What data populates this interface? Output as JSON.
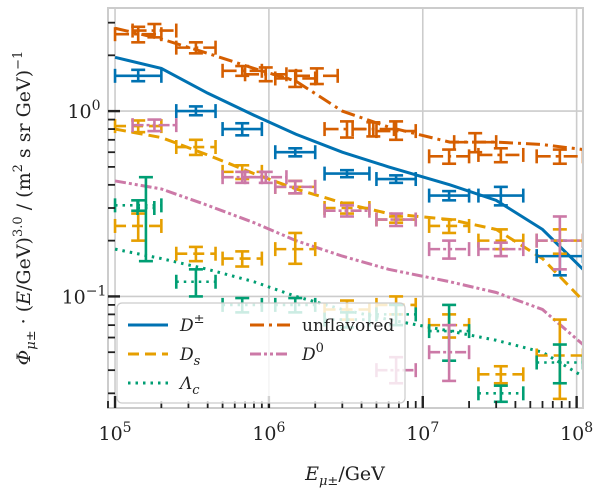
{
  "chart_data": {
    "type": "line",
    "xlabel": "E_{μ±}/GeV",
    "ylabel": "Φ_{μ±} · (E/GeV)^{3.0} / (m² s sr GeV)^{-1}",
    "x_scale": "log",
    "y_scale": "log",
    "xlim": [
      90000,
      110000000
    ],
    "ylim": [
      0.025,
      3.6
    ],
    "grid": true,
    "legend_position": "lower-left",
    "x_ticks": [
      {
        "v": 100000,
        "mant": "10",
        "exp": "5"
      },
      {
        "v": 1000000,
        "mant": "10",
        "exp": "6"
      },
      {
        "v": 10000000,
        "mant": "10",
        "exp": "7"
      },
      {
        "v": 100000000,
        "mant": "10",
        "exp": "8"
      }
    ],
    "y_ticks": [
      {
        "v": 0.1,
        "mant": "10",
        "exp": "−1"
      },
      {
        "v": 1.0,
        "mant": "10",
        "exp": "0"
      }
    ],
    "series": [
      {
        "name": "D±",
        "legend_base": "D",
        "legend_sup": "±",
        "legend_sub": "",
        "color": "#0072b2",
        "dash": "solid",
        "x": [
          100000,
          200000,
          400000,
          800000,
          1500000,
          3000000,
          6000000,
          15000000,
          30000000,
          60000000,
          110000000
        ],
        "y": [
          1.95,
          1.7,
          1.25,
          0.95,
          0.75,
          0.6,
          0.5,
          0.4,
          0.33,
          0.23,
          0.14
        ],
        "points": [
          {
            "x": [
              100000,
              200000
            ],
            "y": 1.55,
            "ylo": 1.45,
            "yhi": 1.67
          },
          {
            "x": [
              250000,
              450000
            ],
            "y": 1.0,
            "ylo": 0.95,
            "yhi": 1.06
          },
          {
            "x": [
              500000,
              900000
            ],
            "y": 0.8,
            "ylo": 0.74,
            "yhi": 0.86
          },
          {
            "x": [
              1100000,
              2000000
            ],
            "y": 0.6,
            "ylo": 0.57,
            "yhi": 0.63
          },
          {
            "x": [
              2300000,
              4500000
            ],
            "y": 0.46,
            "ylo": 0.44,
            "yhi": 0.48
          },
          {
            "x": [
              5000000,
              9000000
            ],
            "y": 0.43,
            "ylo": 0.41,
            "yhi": 0.45
          },
          {
            "x": [
              11000000,
              20000000
            ],
            "y": 0.35,
            "ylo": 0.33,
            "yhi": 0.37
          },
          {
            "x": [
              23000000,
              45000000
            ],
            "y": 0.35,
            "ylo": 0.31,
            "yhi": 0.39
          },
          {
            "x": [
              55000000,
              110000000
            ],
            "y": 0.165,
            "ylo": 0.13,
            "yhi": 0.2
          }
        ]
      },
      {
        "name": "Ds",
        "legend_base": "D",
        "legend_sup": "",
        "legend_sub": "s",
        "color": "#e69f00",
        "dash": "11,6",
        "x": [
          100000,
          200000,
          400000,
          800000,
          1500000,
          3000000,
          6000000,
          15000000,
          30000000,
          60000000,
          110000000
        ],
        "y": [
          0.8,
          0.72,
          0.58,
          0.46,
          0.38,
          0.32,
          0.28,
          0.26,
          0.23,
          0.16,
          0.095
        ],
        "points": [
          {
            "x": [
              100000,
              200000
            ],
            "y": 0.83,
            "ylo": 0.77,
            "yhi": 0.89
          },
          {
            "x": [
              250000,
              450000
            ],
            "y": 0.64,
            "ylo": 0.58,
            "yhi": 0.7
          },
          {
            "x": [
              500000,
              900000
            ],
            "y": 0.47,
            "ylo": 0.43,
            "yhi": 0.51
          },
          {
            "x": [
              1100000,
              2000000
            ],
            "y": 0.39,
            "ylo": 0.36,
            "yhi": 0.42
          },
          {
            "x": [
              2300000,
              4500000
            ],
            "y": 0.3,
            "ylo": 0.28,
            "yhi": 0.32
          },
          {
            "x": [
              5000000,
              9000000
            ],
            "y": 0.26,
            "ylo": 0.25,
            "yhi": 0.27
          },
          {
            "x": [
              11000000,
              20000000
            ],
            "y": 0.24,
            "ylo": 0.22,
            "yhi": 0.26
          },
          {
            "x": [
              23000000,
              45000000
            ],
            "y": 0.2,
            "ylo": 0.18,
            "yhi": 0.23
          },
          {
            "x": [
              55000000,
              110000000
            ],
            "y": 0.2,
            "ylo": 0.17,
            "yhi": 0.23
          },
          {
            "x": [
              100000,
              200000
            ],
            "y": 0.24,
            "ylo": 0.2,
            "yhi": 0.28
          },
          {
            "x": [
              250000,
              450000
            ],
            "y": 0.17,
            "ylo": 0.155,
            "yhi": 0.185
          },
          {
            "x": [
              500000,
              900000
            ],
            "y": 0.16,
            "ylo": 0.145,
            "yhi": 0.175
          },
          {
            "x": [
              1100000,
              2000000
            ],
            "y": 0.18,
            "ylo": 0.15,
            "yhi": 0.22
          },
          {
            "x": [
              2300000,
              4500000
            ],
            "y": 0.085,
            "ylo": 0.075,
            "yhi": 0.095
          },
          {
            "x": [
              5000000,
              9000000
            ],
            "y": 0.09,
            "ylo": 0.08,
            "yhi": 0.1
          },
          {
            "x": [
              11000000,
              20000000
            ],
            "y": 0.07,
            "ylo": 0.06,
            "yhi": 0.08
          },
          {
            "x": [
              23000000,
              45000000
            ],
            "y": 0.038,
            "ylo": 0.034,
            "yhi": 0.042
          },
          {
            "x": [
              55000000,
              110000000
            ],
            "y": 0.048,
            "ylo": 0.028,
            "yhi": 0.075
          }
        ]
      },
      {
        "name": "Λc",
        "legend_base": "Λ",
        "legend_sup": "",
        "legend_sub": "c",
        "color": "#009e73",
        "dash": "2.5,5",
        "x": [
          100000,
          200000,
          400000,
          800000,
          1500000,
          3000000,
          6000000,
          15000000,
          30000000,
          60000000,
          110000000
        ],
        "y": [
          0.18,
          0.16,
          0.14,
          0.12,
          0.1,
          0.085,
          0.075,
          0.065,
          0.058,
          0.05,
          0.037
        ],
        "points": [
          {
            "x": [
              100000,
              200000
            ],
            "y": 0.31,
            "ylo": 0.29,
            "yhi": 0.33
          },
          {
            "x": [
              140000,
              180000
            ],
            "y": 0.3,
            "ylo": 0.155,
            "yhi": 0.44
          },
          {
            "x": [
              250000,
              450000
            ],
            "y": 0.12,
            "ylo": 0.1,
            "yhi": 0.14
          },
          {
            "x": [
              500000,
              900000
            ],
            "y": 0.09,
            "ylo": 0.082,
            "yhi": 0.098
          },
          {
            "x": [
              1100000,
              2000000
            ],
            "y": 0.09,
            "ylo": 0.082,
            "yhi": 0.098
          },
          {
            "x": [
              2300000,
              4500000
            ],
            "y": 0.075,
            "ylo": 0.068,
            "yhi": 0.082
          },
          {
            "x": [
              5000000,
              9000000
            ],
            "y": 0.08,
            "ylo": 0.07,
            "yhi": 0.09
          },
          {
            "x": [
              11000000,
              20000000
            ],
            "y": 0.065,
            "ylo": 0.045,
            "yhi": 0.09
          },
          {
            "x": [
              23000000,
              45000000
            ],
            "y": 0.03,
            "ylo": 0.027,
            "yhi": 0.033
          },
          {
            "x": [
              55000000,
              110000000
            ],
            "y": 0.044,
            "ylo": 0.034,
            "yhi": 0.055
          }
        ]
      },
      {
        "name": "unflavored",
        "legend_base": "unflavored",
        "legend_sup": "",
        "legend_sub": "",
        "color": "#d55e00",
        "dash": "14,5,3,5",
        "x": [
          100000,
          200000,
          400000,
          800000,
          1500000,
          3000000,
          6000000,
          15000000,
          30000000,
          60000000,
          110000000
        ],
        "y": [
          2.8,
          2.45,
          2.05,
          1.7,
          1.45,
          1.0,
          0.82,
          0.68,
          0.68,
          0.66,
          0.62
        ],
        "points": [
          {
            "x": [
              100000,
              200000
            ],
            "y": 2.6,
            "ylo": 2.35,
            "yhi": 2.85
          },
          {
            "x": [
              130000,
              250000
            ],
            "y": 2.72,
            "ylo": 2.5,
            "yhi": 2.95
          },
          {
            "x": [
              250000,
              450000
            ],
            "y": 2.2,
            "ylo": 2.05,
            "yhi": 2.35
          },
          {
            "x": [
              500000,
              900000
            ],
            "y": 1.65,
            "ylo": 1.55,
            "yhi": 1.75
          },
          {
            "x": [
              700000,
              1300000
            ],
            "y": 1.58,
            "ylo": 1.45,
            "yhi": 1.72
          },
          {
            "x": [
              1100000,
              2000000
            ],
            "y": 1.5,
            "ylo": 1.35,
            "yhi": 1.65
          },
          {
            "x": [
              1500000,
              2800000
            ],
            "y": 1.55,
            "ylo": 1.4,
            "yhi": 1.7
          },
          {
            "x": [
              2300000,
              4500000
            ],
            "y": 0.8,
            "ylo": 0.72,
            "yhi": 0.88
          },
          {
            "x": [
              3500000,
              6500000
            ],
            "y": 0.8,
            "ylo": 0.73,
            "yhi": 0.87
          },
          {
            "x": [
              5000000,
              9000000
            ],
            "y": 0.78,
            "ylo": 0.7,
            "yhi": 0.88
          },
          {
            "x": [
              11000000,
              20000000
            ],
            "y": 0.57,
            "ylo": 0.52,
            "yhi": 0.62
          },
          {
            "x": [
              16000000,
              30000000
            ],
            "y": 0.68,
            "ylo": 0.6,
            "yhi": 0.76
          },
          {
            "x": [
              23000000,
              45000000
            ],
            "y": 0.58,
            "ylo": 0.53,
            "yhi": 0.63
          },
          {
            "x": [
              55000000,
              110000000
            ],
            "y": 0.57,
            "ylo": 0.52,
            "yhi": 0.62
          }
        ]
      },
      {
        "name": "D0",
        "legend_base": "D",
        "legend_sup": "0",
        "legend_sub": "",
        "color": "#cc79a7",
        "dash": "11,3,3,3,3,3",
        "x": [
          100000,
          200000,
          400000,
          800000,
          1500000,
          3000000,
          6000000,
          15000000,
          30000000,
          60000000,
          110000000
        ],
        "y": [
          0.42,
          0.38,
          0.31,
          0.25,
          0.2,
          0.165,
          0.14,
          0.12,
          0.105,
          0.085,
          0.055
        ],
        "points": [
          {
            "x": [
              130000,
              250000
            ],
            "y": 0.84,
            "ylo": 0.78,
            "yhi": 0.9
          },
          {
            "x": [
              500000,
              900000
            ],
            "y": 0.44,
            "ylo": 0.41,
            "yhi": 0.47
          },
          {
            "x": [
              700000,
              1300000
            ],
            "y": 0.44,
            "ylo": 0.41,
            "yhi": 0.47
          },
          {
            "x": [
              1100000,
              2000000
            ],
            "y": 0.39,
            "ylo": 0.36,
            "yhi": 0.42
          },
          {
            "x": [
              2300000,
              4500000
            ],
            "y": 0.29,
            "ylo": 0.27,
            "yhi": 0.31
          },
          {
            "x": [
              5000000,
              9000000
            ],
            "y": 0.26,
            "ylo": 0.24,
            "yhi": 0.28
          },
          {
            "x": [
              11000000,
              20000000
            ],
            "y": 0.18,
            "ylo": 0.16,
            "yhi": 0.2
          },
          {
            "x": [
              23000000,
              45000000
            ],
            "y": 0.18,
            "ylo": 0.165,
            "yhi": 0.195
          },
          {
            "x": [
              55000000,
              110000000
            ],
            "y": 0.2,
            "ylo": 0.14,
            "yhi": 0.27
          },
          {
            "x": [
              5000000,
              9000000
            ],
            "y": 0.04,
            "ylo": 0.034,
            "yhi": 0.047
          },
          {
            "x": [
              11000000,
              20000000
            ],
            "y": 0.05,
            "ylo": 0.035,
            "yhi": 0.07
          }
        ]
      }
    ],
    "legend_order": [
      0,
      3,
      1,
      4,
      2
    ]
  }
}
